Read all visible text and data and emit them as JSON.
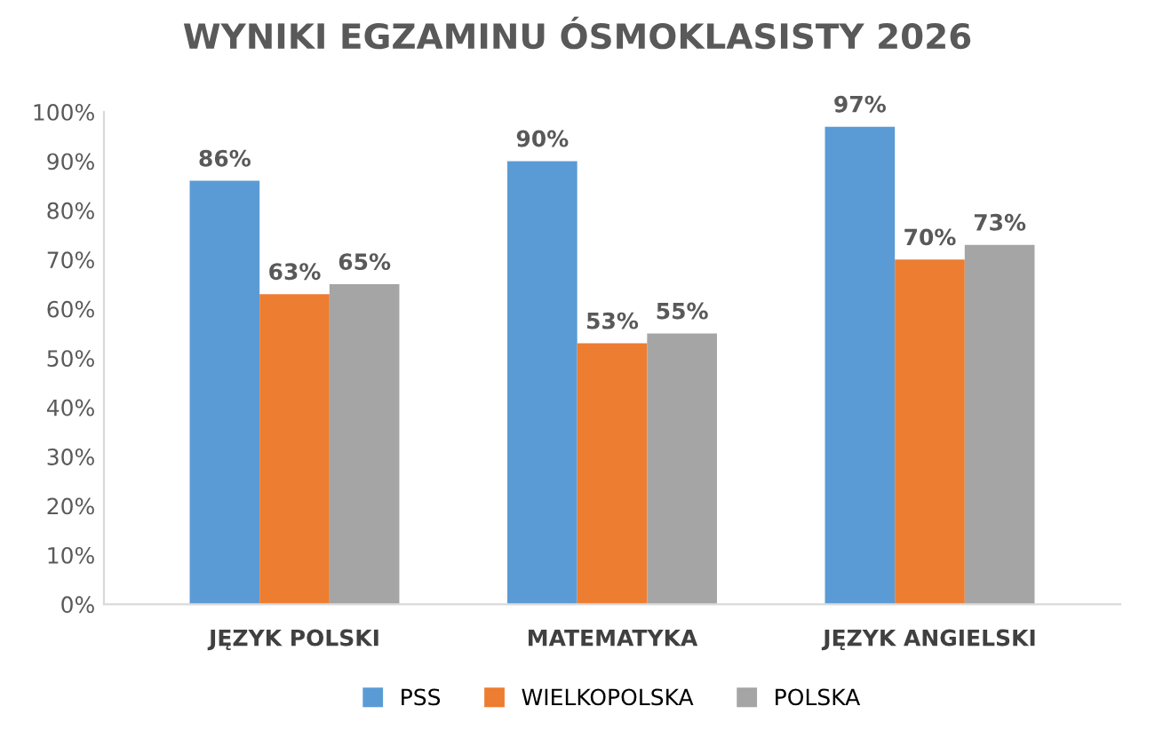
{
  "chart_data": {
    "type": "bar",
    "title": "WYNIKI EGZAMINU ÓSMOKLASISTY 2026",
    "categories": [
      "JĘZYK POLSKI",
      "MATEMATYKA",
      "JĘZYK ANGIELSKI"
    ],
    "series": [
      {
        "name": "PSS",
        "color": "#5b9bd5",
        "values": [
          86,
          90,
          97
        ],
        "value_labels": [
          "86%",
          "90%",
          "97%"
        ]
      },
      {
        "name": "WIELKOPOLSKA",
        "color": "#ed7d31",
        "values": [
          63,
          53,
          70
        ],
        "value_labels": [
          "63%",
          "53%",
          "70%"
        ]
      },
      {
        "name": "POLSKA",
        "color": "#a5a5a5",
        "values": [
          65,
          55,
          73
        ],
        "value_labels": [
          "65%",
          "55%",
          "73%"
        ]
      }
    ],
    "ylim": [
      0,
      100
    ],
    "yticks": [
      {
        "value": 0,
        "label": "0%"
      },
      {
        "value": 10,
        "label": "10%"
      },
      {
        "value": 20,
        "label": "20%"
      },
      {
        "value": 30,
        "label": "30%"
      },
      {
        "value": 40,
        "label": "40%"
      },
      {
        "value": 50,
        "label": "50%"
      },
      {
        "value": 60,
        "label": "60%"
      },
      {
        "value": 70,
        "label": "70%"
      },
      {
        "value": 80,
        "label": "80%"
      },
      {
        "value": 90,
        "label": "90%"
      },
      {
        "value": 100,
        "label": "100%"
      }
    ],
    "grid": false,
    "legend": "bottom"
  }
}
